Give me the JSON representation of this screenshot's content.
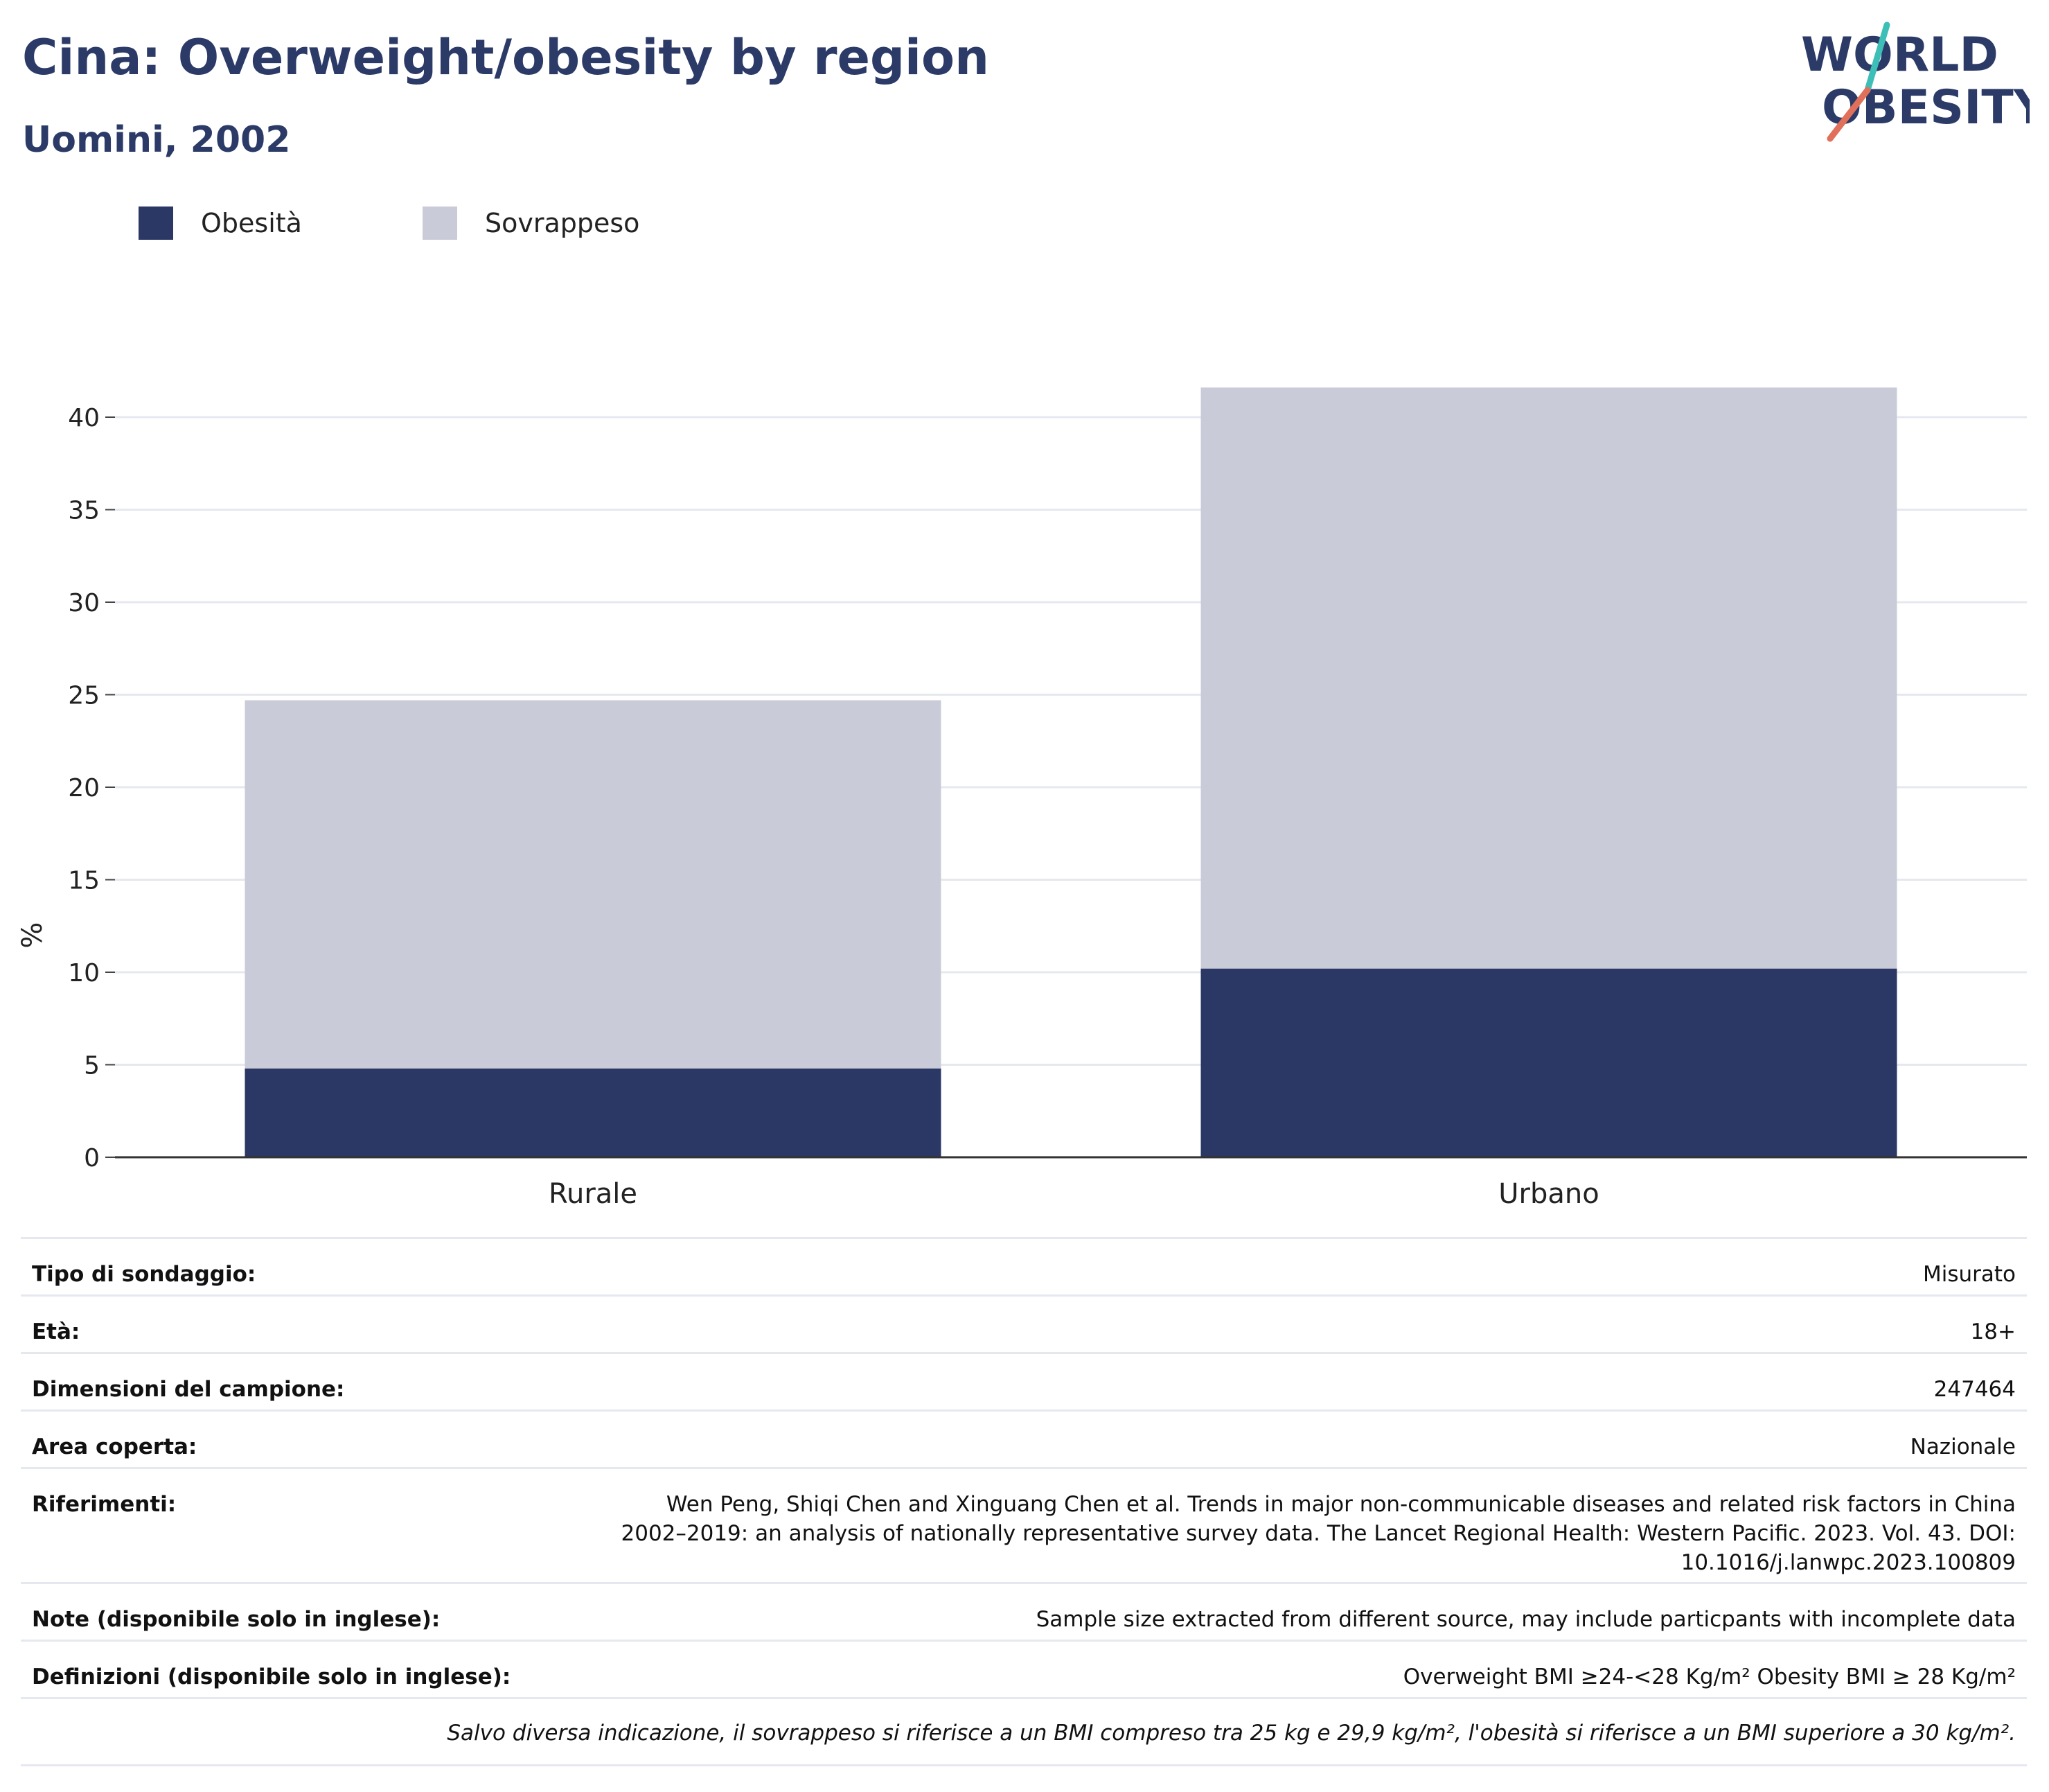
{
  "header": {
    "title": "Cina: Overweight/obesity by region",
    "subtitle": "Uomini, 2002"
  },
  "logo": {
    "line1": "WORLD",
    "line2": "OBESITY",
    "colors": {
      "text": "#2b3a67",
      "slash_teal": "#3dbfb8",
      "slash_coral": "#e0705a"
    }
  },
  "legend": [
    {
      "label": "Obesità",
      "color": "#2b3765"
    },
    {
      "label": "Sovrappeso",
      "color": "#c9ccd8"
    }
  ],
  "chart_data": {
    "type": "bar",
    "stacked": true,
    "categories": [
      "Rurale",
      "Urbano"
    ],
    "series": [
      {
        "name": "Obesità",
        "color": "#2b3765",
        "values": [
          4.8,
          10.2
        ]
      },
      {
        "name": "Sovrappeso",
        "color": "#c9ccd8",
        "values": [
          19.9,
          31.4
        ]
      }
    ],
    "ylabel": "%",
    "ylim": [
      0,
      42
    ],
    "yticks": [
      0,
      5,
      10,
      15,
      20,
      25,
      30,
      35,
      40
    ],
    "grid": true,
    "legend_position": "top-left"
  },
  "meta": {
    "rows": [
      {
        "key": "Tipo di sondaggio:",
        "value": "Misurato"
      },
      {
        "key": "Età:",
        "value": "18+"
      },
      {
        "key": "Dimensioni del campione:",
        "value": "247464"
      },
      {
        "key": "Area coperta:",
        "value": "Nazionale"
      },
      {
        "key": "Riferimenti:",
        "value": "Wen Peng, Shiqi Chen and Xinguang Chen et al. Trends in major non-communicable diseases and related risk factors in China 2002–2019: an analysis of nationally representative survey data. The Lancet Regional Health: Western Pacific. 2023. Vol. 43. DOI: 10.1016/j.lanwpc.2023.100809"
      },
      {
        "key": "Note (disponibile solo in inglese):",
        "value": "Sample size extracted from different source, may include particpants with incomplete data"
      },
      {
        "key": "Definizioni (disponibile solo in inglese):",
        "value": "Overweight BMI ≥24-<28 Kg/m² Obesity BMI ≥ 28 Kg/m²"
      }
    ],
    "footnote": "Salvo diversa indicazione, il sovrappeso si riferisce a un BMI compreso tra 25 kg e 29,9 kg/m², l'obesità si riferisce a un BMI superiore a 30 kg/m²."
  }
}
